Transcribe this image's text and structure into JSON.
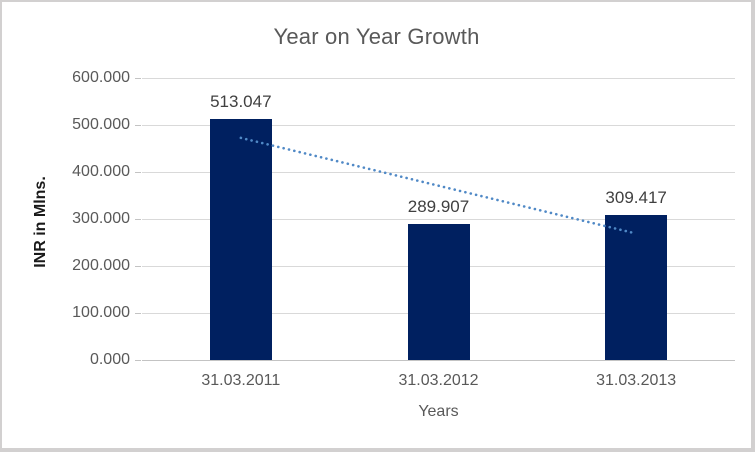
{
  "chart_data": {
    "type": "bar",
    "title": "Year on Year Growth",
    "xlabel": "Years",
    "ylabel": "INR in Mlns.",
    "categories": [
      "31.03.2011",
      "31.03.2012",
      "31.03.2013"
    ],
    "values": [
      513.047,
      289.907,
      309.417
    ],
    "data_labels": [
      "513.047",
      "289.907",
      "309.417"
    ],
    "ylim": [
      0,
      600
    ],
    "ytick_step": 100,
    "ytick_labels": [
      "0.000",
      "100.000",
      "200.000",
      "300.000",
      "400.000",
      "500.000",
      "600.000"
    ],
    "grid": true,
    "legend": "none",
    "trendline": {
      "style": "dotted",
      "start_value": 472.6,
      "end_value": 269.0
    },
    "colors": {
      "bar": "#002060",
      "trendline": "#5089c6",
      "gridline": "#d9d9d9",
      "baseline": "#c3c3c3",
      "tick": "#c3c3c3",
      "axis_text": "#595959",
      "title_text": "#595959",
      "data_label_text": "#404040"
    }
  }
}
